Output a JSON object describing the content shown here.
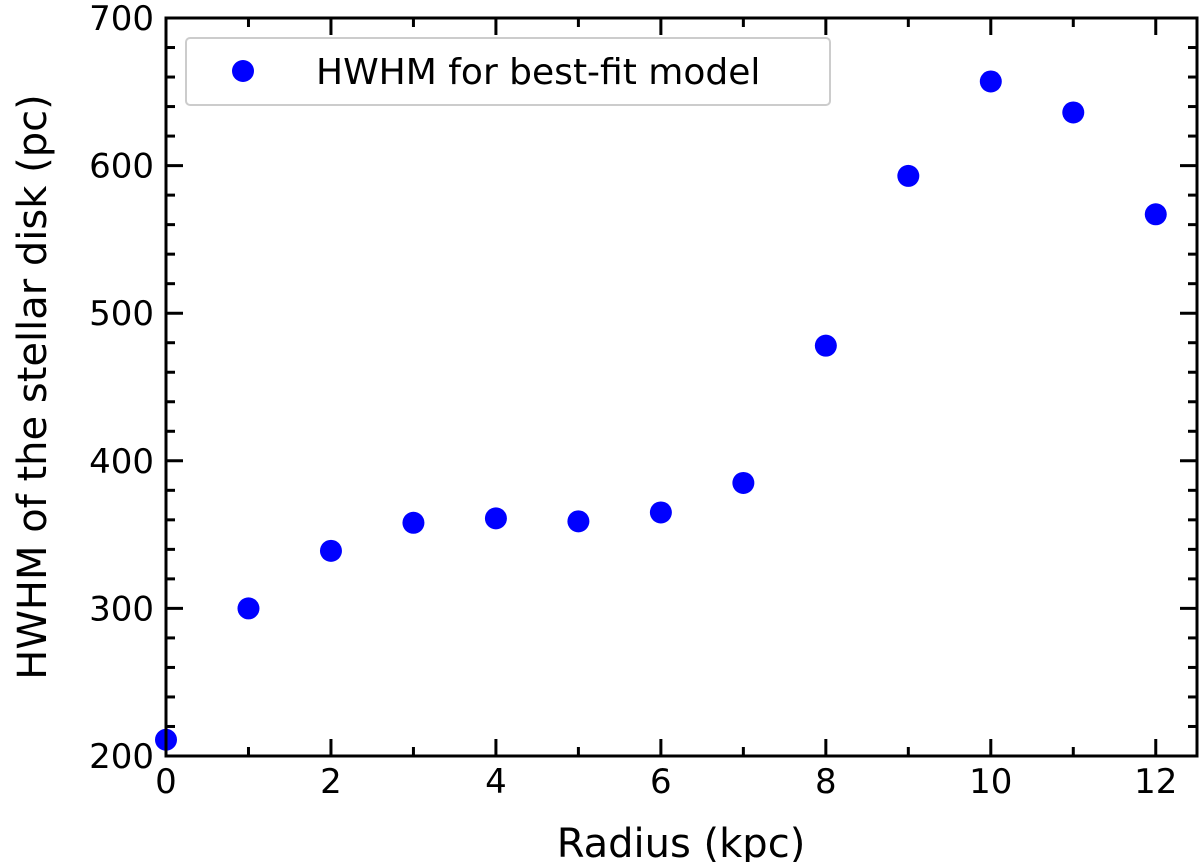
{
  "chart_data": {
    "type": "scatter",
    "xlabel": "Radius (kpc)",
    "ylabel": "HWHM of the stellar disk (pc)",
    "xlim": [
      0,
      12.5
    ],
    "ylim": [
      200,
      700
    ],
    "x_ticks": [
      0,
      2,
      4,
      6,
      8,
      10,
      12
    ],
    "y_ticks": [
      200,
      300,
      400,
      500,
      600,
      700
    ],
    "x_minor_step": 1,
    "y_minor_step": 20,
    "ticks_direction": "in",
    "grid": false,
    "legend_position": "top-left",
    "series": [
      {
        "name": "HWHM for best-fit model",
        "color": "#0000ff",
        "marker": "circle",
        "points": [
          {
            "x": 0,
            "y": 211
          },
          {
            "x": 1,
            "y": 300
          },
          {
            "x": 2,
            "y": 339
          },
          {
            "x": 3,
            "y": 358
          },
          {
            "x": 4,
            "y": 361
          },
          {
            "x": 5,
            "y": 359
          },
          {
            "x": 6,
            "y": 365
          },
          {
            "x": 7,
            "y": 385
          },
          {
            "x": 8,
            "y": 478
          },
          {
            "x": 9,
            "y": 593
          },
          {
            "x": 10,
            "y": 657
          },
          {
            "x": 11,
            "y": 636
          },
          {
            "x": 12,
            "y": 567
          }
        ]
      }
    ]
  }
}
